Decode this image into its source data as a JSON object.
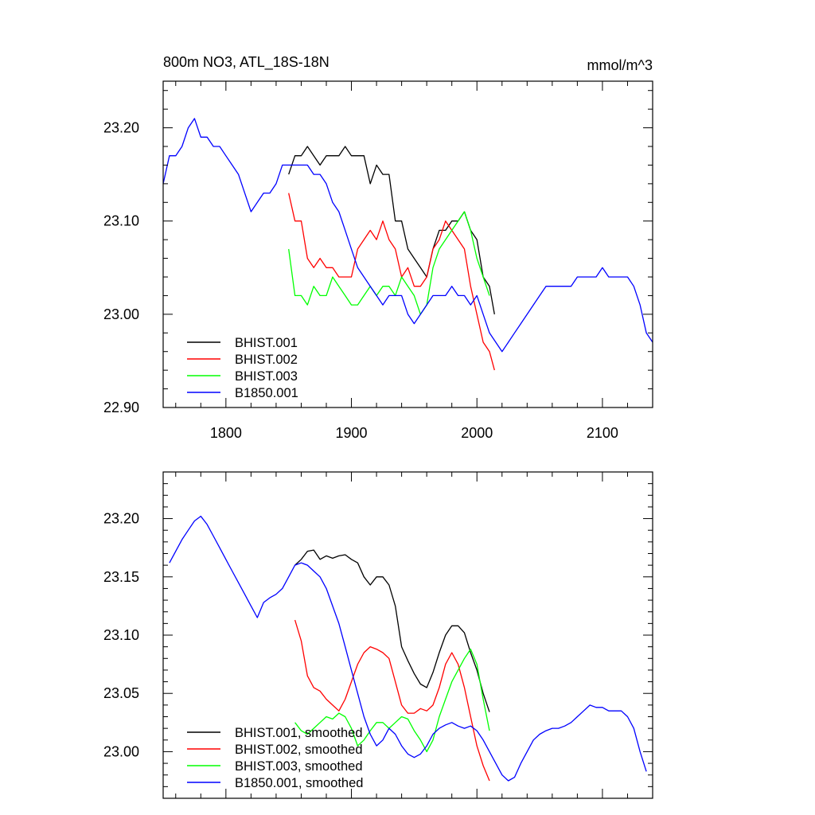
{
  "chart_data": [
    {
      "type": "line",
      "title": "800m NO3, ATL_18S-18N",
      "units": "mmol/m^3",
      "xlim": [
        1750,
        2140
      ],
      "ylim": [
        22.9,
        23.25
      ],
      "xticks": [
        1800,
        1900,
        2000,
        2100
      ],
      "xtick_labels": [
        "1800",
        "1900",
        "2000",
        "2100"
      ],
      "yticks": [
        22.9,
        23.0,
        23.1,
        23.2
      ],
      "ytick_labels": [
        "22.90",
        "23.00",
        "23.10",
        "23.20"
      ],
      "legend": "bottom-left",
      "series": [
        {
          "name": "BHIST.001",
          "color": "#000000",
          "x": [
            1850,
            1855,
            1860,
            1865,
            1870,
            1875,
            1880,
            1885,
            1890,
            1895,
            1900,
            1905,
            1910,
            1915,
            1920,
            1925,
            1930,
            1935,
            1940,
            1945,
            1950,
            1955,
            1960,
            1965,
            1970,
            1975,
            1980,
            1985,
            1990,
            1995,
            2000,
            2005,
            2010,
            2014
          ],
          "y": [
            23.15,
            23.17,
            23.17,
            23.18,
            23.17,
            23.16,
            23.17,
            23.17,
            23.17,
            23.18,
            23.17,
            23.17,
            23.17,
            23.14,
            23.16,
            23.15,
            23.15,
            23.1,
            23.1,
            23.07,
            23.06,
            23.05,
            23.04,
            23.07,
            23.09,
            23.09,
            23.1,
            23.1,
            23.11,
            23.09,
            23.08,
            23.04,
            23.03,
            23.0
          ]
        },
        {
          "name": "BHIST.002",
          "color": "#ff0000",
          "x": [
            1850,
            1855,
            1860,
            1865,
            1870,
            1875,
            1880,
            1885,
            1890,
            1895,
            1900,
            1905,
            1910,
            1915,
            1920,
            1925,
            1930,
            1935,
            1940,
            1945,
            1950,
            1955,
            1960,
            1965,
            1970,
            1975,
            1980,
            1985,
            1990,
            1995,
            2000,
            2005,
            2010,
            2014
          ],
          "y": [
            23.13,
            23.1,
            23.1,
            23.06,
            23.05,
            23.06,
            23.05,
            23.05,
            23.04,
            23.04,
            23.04,
            23.07,
            23.08,
            23.09,
            23.08,
            23.1,
            23.08,
            23.07,
            23.04,
            23.05,
            23.03,
            23.03,
            23.04,
            23.07,
            23.08,
            23.1,
            23.09,
            23.08,
            23.07,
            23.03,
            23.0,
            22.97,
            22.96,
            22.94
          ]
        },
        {
          "name": "BHIST.003",
          "color": "#00ff00",
          "x": [
            1850,
            1855,
            1860,
            1865,
            1870,
            1875,
            1880,
            1885,
            1890,
            1895,
            1900,
            1905,
            1910,
            1915,
            1920,
            1925,
            1930,
            1935,
            1940,
            1945,
            1950,
            1955,
            1960,
            1965,
            1970,
            1975,
            1980,
            1985,
            1990,
            1995,
            2000,
            2005,
            2010
          ],
          "y": [
            23.07,
            23.02,
            23.02,
            23.01,
            23.03,
            23.02,
            23.02,
            23.04,
            23.03,
            23.02,
            23.01,
            23.01,
            23.02,
            23.03,
            23.02,
            23.03,
            23.03,
            23.02,
            23.04,
            23.03,
            23.02,
            23.0,
            23.01,
            23.05,
            23.07,
            23.08,
            23.09,
            23.1,
            23.11,
            23.09,
            23.06,
            23.04,
            23.02
          ]
        },
        {
          "name": "B1850.001",
          "color": "#0000ff",
          "x": [
            1750,
            1755,
            1760,
            1765,
            1770,
            1775,
            1780,
            1785,
            1790,
            1795,
            1800,
            1805,
            1810,
            1815,
            1820,
            1825,
            1830,
            1835,
            1840,
            1845,
            1850,
            1855,
            1860,
            1865,
            1870,
            1875,
            1880,
            1885,
            1890,
            1895,
            1900,
            1905,
            1910,
            1915,
            1920,
            1925,
            1930,
            1935,
            1940,
            1945,
            1950,
            1955,
            1960,
            1965,
            1970,
            1975,
            1980,
            1985,
            1990,
            1995,
            2000,
            2005,
            2010,
            2015,
            2020,
            2025,
            2030,
            2035,
            2040,
            2045,
            2050,
            2055,
            2060,
            2065,
            2070,
            2075,
            2080,
            2085,
            2090,
            2095,
            2100,
            2105,
            2110,
            2115,
            2120,
            2125,
            2130,
            2135,
            2140
          ],
          "y": [
            23.14,
            23.17,
            23.17,
            23.18,
            23.2,
            23.21,
            23.19,
            23.19,
            23.18,
            23.18,
            23.17,
            23.16,
            23.15,
            23.13,
            23.11,
            23.12,
            23.13,
            23.13,
            23.14,
            23.16,
            23.16,
            23.16,
            23.16,
            23.16,
            23.15,
            23.15,
            23.14,
            23.12,
            23.11,
            23.09,
            23.07,
            23.05,
            23.04,
            23.03,
            23.02,
            23.01,
            23.02,
            23.02,
            23.02,
            23.0,
            22.99,
            23.0,
            23.01,
            23.02,
            23.02,
            23.02,
            23.03,
            23.02,
            23.02,
            23.01,
            23.02,
            23.0,
            22.98,
            22.97,
            22.96,
            22.97,
            22.98,
            22.99,
            23.0,
            23.01,
            23.02,
            23.03,
            23.03,
            23.03,
            23.03,
            23.03,
            23.04,
            23.04,
            23.04,
            23.04,
            23.05,
            23.04,
            23.04,
            23.04,
            23.04,
            23.03,
            23.01,
            22.98,
            22.97
          ]
        }
      ],
      "legend_entries": [
        "BHIST.001",
        "BHIST.002",
        "BHIST.003",
        "B1850.001"
      ]
    },
    {
      "type": "line",
      "xlim": [
        1750,
        2140
      ],
      "ylim": [
        22.96,
        23.24
      ],
      "xticks": [
        1800,
        1900,
        2000,
        2100
      ],
      "yticks": [
        23.0,
        23.05,
        23.1,
        23.15,
        23.2
      ],
      "ytick_labels": [
        "23.00",
        "23.05",
        "23.10",
        "23.15",
        "23.20"
      ],
      "legend": "bottom-left",
      "series": [
        {
          "name": "BHIST.001, smoothed",
          "color": "#000000",
          "x": [
            1855,
            1860,
            1865,
            1870,
            1875,
            1880,
            1885,
            1890,
            1895,
            1900,
            1905,
            1910,
            1915,
            1920,
            1925,
            1930,
            1935,
            1940,
            1945,
            1950,
            1955,
            1960,
            1965,
            1970,
            1975,
            1980,
            1985,
            1990,
            1995,
            2000,
            2005,
            2010
          ],
          "y": [
            23.16,
            23.165,
            23.172,
            23.173,
            23.165,
            23.168,
            23.166,
            23.168,
            23.169,
            23.165,
            23.162,
            23.15,
            23.143,
            23.15,
            23.15,
            23.143,
            23.125,
            23.09,
            23.078,
            23.067,
            23.058,
            23.055,
            23.068,
            23.085,
            23.1,
            23.108,
            23.108,
            23.102,
            23.085,
            23.07,
            23.05,
            23.034
          ]
        },
        {
          "name": "BHIST.002, smoothed",
          "color": "#ff0000",
          "x": [
            1855,
            1860,
            1865,
            1870,
            1875,
            1880,
            1885,
            1890,
            1895,
            1900,
            1905,
            1910,
            1915,
            1920,
            1925,
            1930,
            1935,
            1940,
            1945,
            1950,
            1955,
            1960,
            1965,
            1970,
            1975,
            1980,
            1985,
            1990,
            1995,
            2000,
            2005,
            2010
          ],
          "y": [
            23.113,
            23.095,
            23.065,
            23.055,
            23.052,
            23.045,
            23.04,
            23.035,
            23.045,
            23.06,
            23.075,
            23.085,
            23.09,
            23.088,
            23.085,
            23.08,
            23.06,
            23.04,
            23.033,
            23.033,
            23.037,
            23.035,
            23.04,
            23.055,
            23.075,
            23.085,
            23.075,
            23.055,
            23.03,
            23.005,
            22.988,
            22.975
          ]
        },
        {
          "name": "BHIST.003, smoothed",
          "color": "#00ff00",
          "x": [
            1855,
            1860,
            1865,
            1870,
            1875,
            1880,
            1885,
            1890,
            1895,
            1900,
            1905,
            1910,
            1915,
            1920,
            1925,
            1930,
            1935,
            1940,
            1945,
            1950,
            1955,
            1960,
            1965,
            1970,
            1975,
            1980,
            1985,
            1990,
            1995,
            2000,
            2005,
            2010
          ],
          "y": [
            23.025,
            23.018,
            23.015,
            23.02,
            23.025,
            23.03,
            23.028,
            23.033,
            23.03,
            23.02,
            23.005,
            23.01,
            23.018,
            23.025,
            23.025,
            23.02,
            23.025,
            23.03,
            23.028,
            23.018,
            23.01,
            23.0,
            23.01,
            23.03,
            23.045,
            23.06,
            23.07,
            23.08,
            23.088,
            23.075,
            23.045,
            23.018
          ]
        },
        {
          "name": "B1850.001, smoothed",
          "color": "#0000ff",
          "x": [
            1755,
            1760,
            1765,
            1770,
            1775,
            1780,
            1785,
            1790,
            1795,
            1800,
            1805,
            1810,
            1815,
            1820,
            1825,
            1830,
            1835,
            1840,
            1845,
            1850,
            1855,
            1860,
            1865,
            1870,
            1875,
            1880,
            1885,
            1890,
            1895,
            1900,
            1905,
            1910,
            1915,
            1920,
            1925,
            1930,
            1935,
            1940,
            1945,
            1950,
            1955,
            1960,
            1965,
            1970,
            1975,
            1980,
            1985,
            1990,
            1995,
            2000,
            2005,
            2010,
            2015,
            2020,
            2025,
            2030,
            2035,
            2040,
            2045,
            2050,
            2055,
            2060,
            2065,
            2070,
            2075,
            2080,
            2085,
            2090,
            2095,
            2100,
            2105,
            2110,
            2115,
            2120,
            2125,
            2130,
            2135
          ],
          "y": [
            23.162,
            23.172,
            23.182,
            23.19,
            23.198,
            23.202,
            23.195,
            23.185,
            23.175,
            23.165,
            23.155,
            23.145,
            23.135,
            23.125,
            23.115,
            23.128,
            23.132,
            23.135,
            23.14,
            23.15,
            23.16,
            23.162,
            23.16,
            23.155,
            23.15,
            23.14,
            23.125,
            23.11,
            23.09,
            23.07,
            23.05,
            23.03,
            23.015,
            23.005,
            23.01,
            23.02,
            23.015,
            23.005,
            22.998,
            22.995,
            22.998,
            23.005,
            23.015,
            23.02,
            23.023,
            23.025,
            23.022,
            23.02,
            23.022,
            23.018,
            23.01,
            23.0,
            22.99,
            22.98,
            22.975,
            22.978,
            22.99,
            23.0,
            23.01,
            23.015,
            23.018,
            23.02,
            23.02,
            23.022,
            23.025,
            23.03,
            23.035,
            23.04,
            23.038,
            23.038,
            23.035,
            23.035,
            23.035,
            23.03,
            23.02,
            23.0,
            22.983
          ]
        }
      ],
      "legend_entries": [
        "BHIST.001, smoothed",
        "BHIST.002, smoothed",
        "BHIST.003, smoothed",
        "B1850.001, smoothed"
      ]
    }
  ]
}
